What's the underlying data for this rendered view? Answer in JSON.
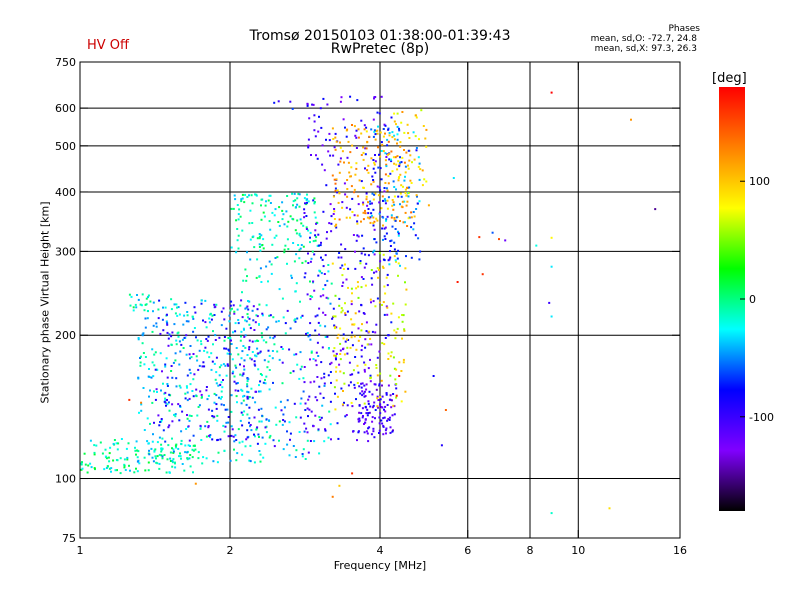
{
  "chart_data": {
    "type": "scatter",
    "title": "Tromsø 20150103 01:38:00-01:39:43",
    "subtitle": "RwPretec (8p)",
    "status_label": "HV Off",
    "xlabel": "Frequency [MHz]",
    "ylabel": "Stationary phase Virtual Height [km]",
    "x_scale": "log",
    "y_scale": "log",
    "xlim": [
      1,
      16
    ],
    "ylim": [
      75,
      750
    ],
    "x_ticks": [
      1,
      2,
      4,
      6,
      8,
      10,
      16
    ],
    "y_ticks": [
      75,
      100,
      200,
      300,
      400,
      500,
      600,
      750
    ],
    "x_grid": [
      2,
      4,
      6,
      8,
      10
    ],
    "y_grid": [
      100,
      200,
      300,
      400,
      500,
      600
    ],
    "grid": true,
    "stats": {
      "heading": "Phases",
      "line1": "mean, sd,O: -72.7, 24.8",
      "line2": "mean, sd,X:  97.3, 26.3"
    },
    "colorbar": {
      "unit": "[deg]",
      "range": [
        -180,
        180
      ],
      "ticks": [
        100,
        0,
        -100
      ],
      "colors": [
        "#ff0000",
        "#ff8000",
        "#ffff00",
        "#00ff00",
        "#00ffff",
        "#0000ff",
        "#8000ff",
        "#000000"
      ]
    },
    "clusters": [
      {
        "xr": [
          1.0,
          1.7
        ],
        "yr": [
          103,
          122
        ],
        "n": 140,
        "phase": -10
      },
      {
        "xr": [
          1.3,
          2.4
        ],
        "yr": [
          108,
          240
        ],
        "n": 360,
        "phase": -25
      },
      {
        "xr": [
          1.4,
          2.3
        ],
        "yr": [
          120,
          240
        ],
        "n": 180,
        "phase": -90
      },
      {
        "xr": [
          1.25,
          1.4
        ],
        "yr": [
          225,
          245
        ],
        "n": 20,
        "phase": -15
      },
      {
        "xr": [
          2.0,
          3.0
        ],
        "yr": [
          300,
          400
        ],
        "n": 140,
        "phase": -15
      },
      {
        "xr": [
          2.0,
          3.2
        ],
        "yr": [
          110,
          300
        ],
        "n": 150,
        "phase": -20
      },
      {
        "xr": [
          2.2,
          3.0
        ],
        "yr": [
          110,
          230
        ],
        "n": 60,
        "phase": -85
      },
      {
        "xr": [
          2.8,
          4.2
        ],
        "yr": [
          120,
          640
        ],
        "n": 360,
        "phase": -100
      },
      {
        "xr": [
          3.2,
          4.6
        ],
        "yr": [
          340,
          560
        ],
        "n": 170,
        "phase": 110
      },
      {
        "xr": [
          3.6,
          4.3
        ],
        "yr": [
          125,
          160
        ],
        "n": 90,
        "phase": -110
      },
      {
        "xr": [
          3.2,
          4.5
        ],
        "yr": [
          140,
          300
        ],
        "n": 140,
        "phase": 80
      },
      {
        "xr": [
          3.8,
          4.8
        ],
        "yr": [
          280,
          560
        ],
        "n": 120,
        "phase": -55
      },
      {
        "xr": [
          4.2,
          5.0
        ],
        "yr": [
          350,
          600
        ],
        "n": 50,
        "phase": 90
      },
      {
        "xr": [
          2.4,
          2.9
        ],
        "yr": [
          600,
          625
        ],
        "n": 6,
        "phase": -90
      }
    ],
    "sparse_points": [
      [
        6.3,
        323,
        160
      ],
      [
        6.7,
        330,
        -60
      ],
      [
        6.9,
        320,
        150
      ],
      [
        7.1,
        318,
        -120
      ],
      [
        8.2,
        310,
        -20
      ],
      [
        8.8,
        322,
        80
      ],
      [
        8.8,
        280,
        -30
      ],
      [
        8.7,
        235,
        -100
      ],
      [
        8.8,
        220,
        -30
      ],
      [
        8.8,
        85,
        -15
      ],
      [
        8.8,
        650,
        180
      ],
      [
        11.5,
        87,
        90
      ],
      [
        12.7,
        570,
        120
      ],
      [
        14.2,
        370,
        -150
      ],
      [
        5.6,
        430,
        -30
      ],
      [
        5.7,
        260,
        170
      ],
      [
        5.1,
        165,
        -80
      ],
      [
        5.4,
        140,
        140
      ],
      [
        5.3,
        118,
        -90
      ],
      [
        6.4,
        270,
        160
      ],
      [
        3.2,
        92,
        130
      ],
      [
        3.3,
        97,
        100
      ],
      [
        3.5,
        103,
        160
      ],
      [
        1.7,
        98,
        120
      ],
      [
        1.25,
        147,
        160
      ],
      [
        1.32,
        145,
        130
      ],
      [
        4.3,
        150,
        170
      ],
      [
        4.35,
        165,
        200
      ]
    ]
  }
}
